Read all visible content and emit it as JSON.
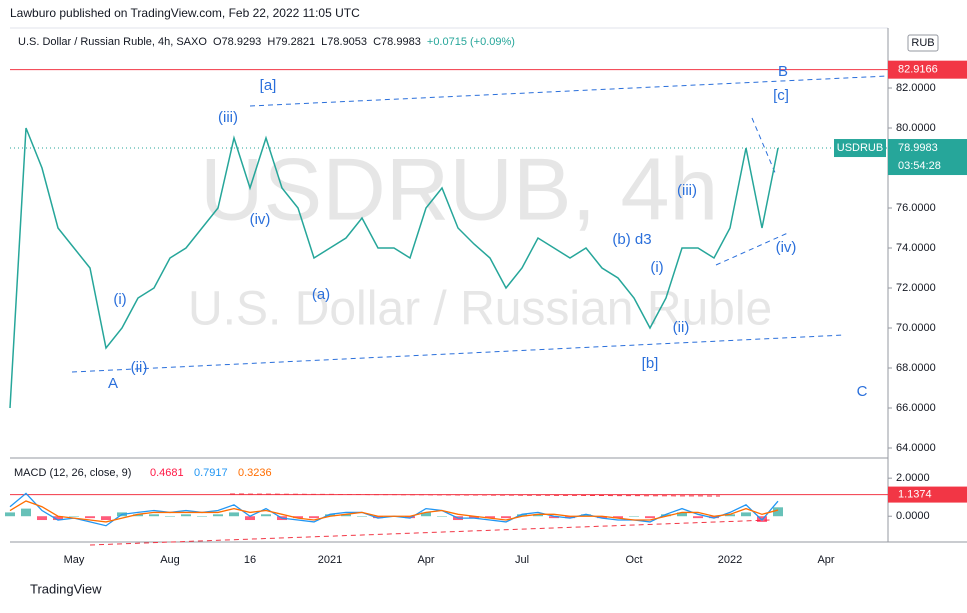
{
  "header": {
    "published": "Lawburo published on TradingView.com, Feb 22, 2022 11:05 UTC",
    "symbol": "U.S. Dollar / Russian Ruble, 4h, SAXO",
    "open": "O78.9293",
    "high": "H79.2821",
    "low": "L78.9053",
    "close": "C78.9983",
    "change": "+0.0715 (+0.09%)"
  },
  "watermark": {
    "ticker": "USDRUB, 4h",
    "name": "U.S. Dollar / Russian Ruble"
  },
  "footer": "TradingView",
  "chart_data": [
    {
      "type": "line",
      "currency": "RUB",
      "categories": [
        null,
        null,
        null,
        null,
        "May",
        null,
        null,
        null,
        null,
        null,
        "Aug",
        null,
        null,
        null,
        null,
        "16",
        null,
        null,
        null,
        null,
        "2021",
        null,
        null,
        null,
        null,
        null,
        "Apr",
        null,
        null,
        null,
        null,
        null,
        "Jul",
        null,
        null,
        null,
        null,
        null,
        null,
        "Oct",
        null,
        null,
        null,
        null,
        null,
        "2022",
        null,
        null,
        null,
        null,
        null,
        "Apr"
      ],
      "series": [
        {
          "name": "USDRUB",
          "color": "#26a69a",
          "values": [
            66,
            80,
            78,
            75,
            74,
            73,
            69,
            70,
            71.5,
            72,
            73.5,
            74,
            75,
            76,
            79.5,
            77,
            79.5,
            77,
            76,
            73.5,
            74,
            74.5,
            75.5,
            74,
            74,
            73.5,
            76,
            77,
            75,
            74.2,
            73.5,
            72,
            73,
            74.5,
            74,
            73.5,
            74,
            73,
            72.5,
            71.5,
            70,
            71.5,
            74,
            74,
            73.5,
            75,
            79,
            75,
            78.9983,
            null,
            null,
            null
          ]
        }
      ],
      "ylim": [
        63.5,
        85
      ],
      "yticks": [
        {
          "value": 64,
          "label": "64.0000"
        },
        {
          "value": 66,
          "label": "66.0000"
        },
        {
          "value": 68,
          "label": "68.0000"
        },
        {
          "value": 70,
          "label": "70.0000"
        },
        {
          "value": 72,
          "label": "72.0000"
        },
        {
          "value": 74,
          "label": "74.0000"
        },
        {
          "value": 76,
          "label": "76.0000"
        },
        {
          "value": 78,
          "label": "78.0000"
        },
        {
          "value": 80,
          "label": "80.0000"
        },
        {
          "value": 82,
          "label": "82.0000"
        }
      ],
      "level": {
        "value": 82.9166,
        "color": "#f23645"
      },
      "last_tag": "USDRUB",
      "countdown": "03:54:28",
      "annotations": [
        "[a]",
        "B",
        "[c]",
        "(iii)",
        "(iv)",
        "(a)",
        "(i)",
        "(ii)",
        "A",
        "(b) d3",
        "(iii)",
        "(i)",
        "(ii)",
        "[b]",
        "(iv)",
        "C"
      ]
    },
    {
      "type": "macd",
      "title": "MACD (12, 26, close, 9)",
      "series": [
        {
          "color_up": "#26a69a",
          "color_down": "#ff1744",
          "values": [
            0.2,
            0.4,
            -0.2,
            -0.2,
            0,
            -0.1,
            -0.2,
            0.2,
            0.1,
            0.1,
            0,
            0.1,
            0,
            0.1,
            0.2,
            -0.2,
            0.1,
            -0.2,
            -0.1,
            -0.1,
            0.1,
            0.1,
            0,
            -0.1,
            0,
            -0.1,
            0.2,
            0,
            -0.2,
            -0.1,
            -0.1,
            -0.1,
            0.1,
            0.1,
            -0.1,
            -0.1,
            0.1,
            -0.1,
            -0.1,
            0,
            -0.1,
            0.1,
            0.2,
            -0.1,
            -0.1,
            0.1,
            0.2,
            -0.3,
            0.4681
          ]
        },
        {
          "color": "#2196f3",
          "values": [
            0.5,
            1.2,
            0.3,
            -0.2,
            -0.1,
            -0.3,
            -0.5,
            0.1,
            0.2,
            0.3,
            0.2,
            0.3,
            0.2,
            0.3,
            0.6,
            0,
            0.4,
            -0.1,
            -0.2,
            -0.3,
            0.1,
            0.2,
            0.2,
            -0.1,
            0,
            -0.1,
            0.4,
            0.3,
            -0.1,
            -0.1,
            -0.2,
            -0.3,
            0.1,
            0.2,
            0,
            -0.1,
            0.1,
            -0.1,
            -0.2,
            -0.2,
            -0.3,
            0.1,
            0.4,
            0.1,
            -0.1,
            0.2,
            0.6,
            -0.2,
            0.7917
          ]
        },
        {
          "color": "#ff6d00",
          "values": [
            0.3,
            0.8,
            0.5,
            0,
            -0.1,
            -0.2,
            -0.3,
            -0.1,
            0.1,
            0.2,
            0.2,
            0.2,
            0.2,
            0.2,
            0.4,
            0.2,
            0.3,
            0.1,
            -0.1,
            -0.2,
            0,
            0.1,
            0.2,
            0,
            0,
            0,
            0.2,
            0.3,
            0.1,
            0,
            -0.1,
            -0.2,
            0,
            0.1,
            0.1,
            0,
            0,
            0,
            -0.1,
            -0.2,
            -0.2,
            0,
            0.2,
            0.2,
            0,
            0.1,
            0.4,
            0.1,
            0.3236
          ]
        }
      ],
      "ylim": [
        -1.25,
        2.85
      ],
      "yticks": [
        {
          "value": 2,
          "label": "2.0000"
        },
        {
          "value": 0,
          "label": "0.0000"
        }
      ],
      "level": {
        "value": 1.1374,
        "color": "#f23645"
      }
    }
  ]
}
